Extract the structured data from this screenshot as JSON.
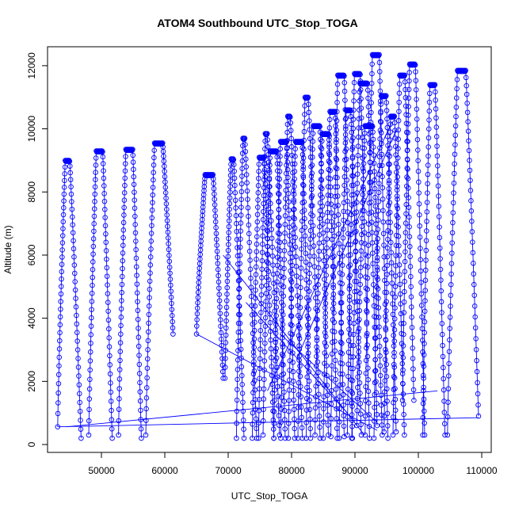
{
  "chart_data": {
    "type": "scatter",
    "title": "ATOM4 Southbound UTC_Stop_TOGA",
    "xlabel": "UTC_Stop_TOGA",
    "ylabel": "Altitude (m)",
    "xlim": [
      41500,
      111500
    ],
    "ylim": [
      -250,
      12600
    ],
    "x_ticks": [
      50000,
      60000,
      70000,
      80000,
      90000,
      100000,
      110000
    ],
    "x_tick_labels": [
      "50000",
      "60000",
      "70000",
      "80000",
      "90000",
      "100000",
      "110000"
    ],
    "y_ticks": [
      0,
      2000,
      4000,
      6000,
      8000,
      10000,
      12000
    ],
    "y_tick_labels": [
      "0",
      "2000",
      "4000",
      "6000",
      "8000",
      "10000",
      "12000"
    ],
    "marker": "open-circle",
    "connected": true,
    "color": "#0000ff",
    "profiles": [
      {
        "t0": 43100,
        "t1": 46800,
        "z0": 560,
        "z1": 200,
        "peak": 9000,
        "plateau": 700
      },
      {
        "t0": 48000,
        "t1": 51700,
        "z0": 300,
        "z1": 200,
        "peak": 9300,
        "plateau": 1000
      },
      {
        "t0": 52700,
        "t1": 56300,
        "z0": 300,
        "z1": 200,
        "peak": 9350,
        "plateau": 1800
      },
      {
        "t0": 57000,
        "t1": 61300,
        "z0": 300,
        "z1": 3500,
        "peak": 9550,
        "plateau": 3000
      },
      {
        "t0": 65000,
        "t1": 69200,
        "z0": 3500,
        "z1": 2100,
        "peak": 8550,
        "plateau": 2700
      },
      {
        "t0": 69500,
        "t1": 72500,
        "z0": 2100,
        "z1": 200,
        "peak": 9050,
        "plateau": 400
      },
      {
        "t0": 71300,
        "t1": 74500,
        "z0": 200,
        "z1": 200,
        "peak": 9700,
        "plateau": 300
      },
      {
        "t0": 73800,
        "t1": 77200,
        "z0": 200,
        "z1": 200,
        "peak": 9100,
        "plateau": 800
      },
      {
        "t0": 74800,
        "t1": 78100,
        "z0": 200,
        "z1": 300,
        "peak": 9850,
        "plateau": 300
      },
      {
        "t0": 75500,
        "t1": 79000,
        "z0": 300,
        "z1": 200,
        "peak": 9300,
        "plateau": 1200
      },
      {
        "t0": 77200,
        "t1": 80500,
        "z0": 200,
        "z1": 200,
        "peak": 9600,
        "plateau": 1500
      },
      {
        "t0": 78300,
        "t1": 81700,
        "z0": 200,
        "z1": 200,
        "peak": 10400,
        "plateau": 400
      },
      {
        "t0": 79500,
        "t1": 83000,
        "z0": 200,
        "z1": 200,
        "peak": 9600,
        "plateau": 2800
      },
      {
        "t0": 81000,
        "t1": 84500,
        "z0": 200,
        "z1": 200,
        "peak": 11000,
        "plateau": 500
      },
      {
        "t0": 82300,
        "t1": 85800,
        "z0": 200,
        "z1": 300,
        "peak": 10100,
        "plateau": 1200
      },
      {
        "t0": 83700,
        "t1": 87200,
        "z0": 300,
        "z1": 200,
        "peak": 9850,
        "plateau": 1700
      },
      {
        "t0": 85000,
        "t1": 88300,
        "z0": 200,
        "z1": 250,
        "peak": 10550,
        "plateau": 800
      },
      {
        "t0": 86200,
        "t1": 89600,
        "z0": 250,
        "z1": 200,
        "peak": 11700,
        "plateau": 1500
      },
      {
        "t0": 87500,
        "t1": 91000,
        "z0": 200,
        "z1": 300,
        "peak": 10600,
        "plateau": 700
      },
      {
        "t0": 88800,
        "t1": 92300,
        "z0": 300,
        "z1": 200,
        "peak": 11750,
        "plateau": 900
      },
      {
        "t0": 89500,
        "t1": 93500,
        "z0": 200,
        "z1": 600,
        "peak": 11450,
        "plateau": 2200
      },
      {
        "t0": 90300,
        "t1": 94300,
        "z0": 600,
        "z1": 300,
        "peak": 10100,
        "plateau": 2400
      },
      {
        "t0": 91600,
        "t1": 95200,
        "z0": 300,
        "z1": 200,
        "peak": 12350,
        "plateau": 2000
      },
      {
        "t0": 93000,
        "t1": 96500,
        "z0": 200,
        "z1": 400,
        "peak": 11050,
        "plateau": 800
      },
      {
        "t0": 94600,
        "t1": 97800,
        "z0": 400,
        "z1": 300,
        "peak": 10400,
        "plateau": 600
      },
      {
        "t0": 96000,
        "t1": 99300,
        "z0": 300,
        "z1": 1400,
        "peak": 11700,
        "plateau": 800
      },
      {
        "t0": 97500,
        "t1": 101000,
        "z0": 1400,
        "z1": 300,
        "peak": 12050,
        "plateau": 900
      },
      {
        "t0": 100700,
        "t1": 104200,
        "z0": 300,
        "z1": 300,
        "peak": 11400,
        "plateau": 800
      },
      {
        "t0": 104600,
        "t1": 109500,
        "z0": 300,
        "z1": 900,
        "peak": 11850,
        "plateau": 1300
      }
    ],
    "transit_lines": [
      {
        "x": [
          43100,
          109500
        ],
        "y": [
          560,
          850
        ]
      },
      {
        "x": [
          44500,
          103000
        ],
        "y": [
          560,
          1700
        ]
      },
      {
        "x": [
          65000,
          93500
        ],
        "y": [
          3500,
          450
        ]
      },
      {
        "x": [
          69200,
          91500
        ],
        "y": [
          6000,
          300
        ]
      },
      {
        "x": [
          76200,
          95800
        ],
        "y": [
          1700,
          10200
        ]
      },
      {
        "x": [
          78200,
          93500
        ],
        "y": [
          3500,
          700
        ]
      },
      {
        "x": [
          80800,
          96600
        ],
        "y": [
          2700,
          10000
        ]
      },
      {
        "x": [
          72800,
          88800
        ],
        "y": [
          4500,
          1000
        ]
      }
    ]
  }
}
